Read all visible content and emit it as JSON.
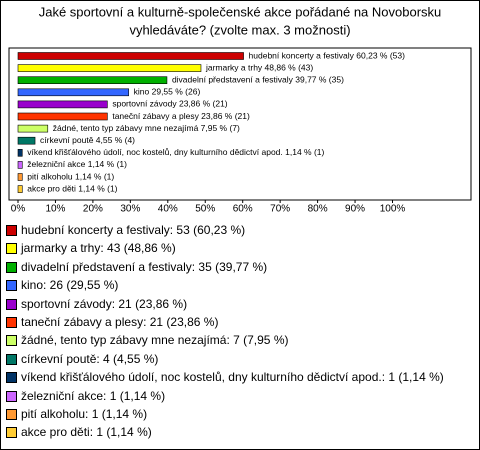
{
  "chart_data": {
    "type": "bar",
    "orientation": "horizontal",
    "title": [
      "Jaké sportovní a kulturně-společenské akce pořádané na Novoborsku",
      "vyhledáváte? (zvolte max. 3 možnosti)"
    ],
    "categories": [
      "hudební koncerty a festivaly",
      "jarmarky a trhy",
      "divadelní představení a festivaly",
      "kino",
      "sportovní závody",
      "taneční zábavy a plesy",
      "žádné, tento typ zábavy mne nezajímá",
      "církevní poutě",
      "víkend křišťálového údolí, noc kostelů, dny kulturního dědictví apod.",
      "železniční akce",
      "pití alkoholu",
      "akce pro děti"
    ],
    "values": [
      60.23,
      48.86,
      39.77,
      29.55,
      23.86,
      23.86,
      7.95,
      4.55,
      1.14,
      1.14,
      1.14,
      1.14
    ],
    "value_labels": [
      "hudební koncerty a festivaly 60,23 % (53)",
      "jarmarky a trhy 48,86 % (43)",
      "divadelní představení a festivaly 39,77 % (35)",
      "kino 29,55 % (26)",
      "sportovní závody 23,86 % (21)",
      "taneční zábavy a plesy 23,86 % (21)",
      "žádné, tento typ zábavy mne nezajímá 7,95 % (7)",
      "církevní poutě 4,55 % (4)",
      "víkend křišťálového údolí, noc kostelů, dny kulturního dědictví apod. 1,14 % (1)",
      "železniční akce 1,14 % (1)",
      "pití alkoholu 1,14 % (1)",
      "akce pro děti 1,14 % (1)"
    ],
    "legend_labels": [
      "hudební koncerty a festivaly: 53 (60,23 %)",
      "jarmarky a trhy: 43 (48,86 %)",
      "divadelní představení a festivaly: 35 (39,77 %)",
      "kino: 26 (29,55 %)",
      "sportovní závody: 21 (23,86 %)",
      "taneční zábavy a plesy: 21 (23,86 %)",
      "žádné, tento typ zábavy mne nezajímá: 7 (7,95 %)",
      "církevní poutě: 4 (4,55 %)",
      "víkend křišťálového údolí, noc kostelů, dny kulturního dědictví apod.: 1 (1,14 %)",
      "železniční akce: 1 (1,14 %)",
      "pití alkoholu: 1 (1,14 %)",
      "akce pro děti: 1 (1,14 %)"
    ],
    "colors": [
      "#cc0000",
      "#ffff00",
      "#00b000",
      "#3366ff",
      "#9900cc",
      "#ff3300",
      "#ccff66",
      "#007766",
      "#003366",
      "#cc66ff",
      "#ff9933",
      "#ffcc33"
    ],
    "xlim": [
      0,
      100
    ],
    "xticks": [
      {
        "value": 0,
        "label": "0%"
      },
      {
        "value": 10,
        "label": "10%"
      },
      {
        "value": 20,
        "label": "20%"
      },
      {
        "value": 30,
        "label": "30%"
      },
      {
        "value": 40,
        "label": "40%"
      },
      {
        "value": 50,
        "label": "50%"
      },
      {
        "value": 60,
        "label": "60%"
      },
      {
        "value": 70,
        "label": "70%"
      },
      {
        "value": 80,
        "label": "80%"
      },
      {
        "value": 90,
        "label": "90%"
      },
      {
        "value": 100,
        "label": "100%"
      }
    ]
  }
}
